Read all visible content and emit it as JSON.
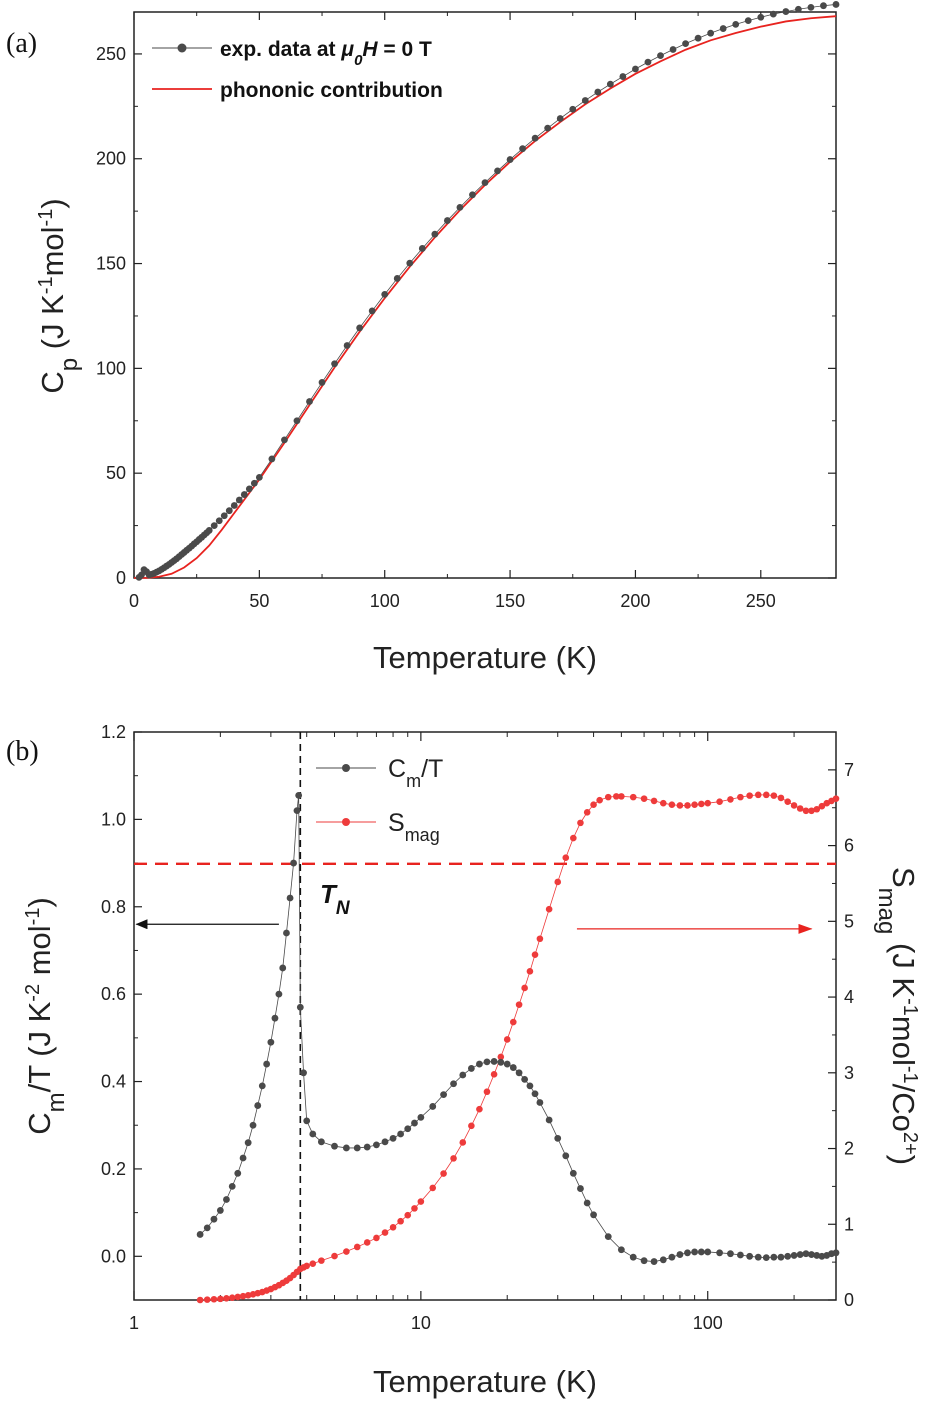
{
  "chart_data": [
    {
      "type": "scatter",
      "panel_label": "(a)",
      "xlabel": "Temperature (K)",
      "ylabel": "Cp (J K-1mol-1)",
      "xlim": [
        0,
        280
      ],
      "ylim": [
        0,
        270
      ],
      "x_ticks": [
        0,
        50,
        100,
        150,
        200,
        250
      ],
      "y_ticks": [
        0,
        50,
        100,
        150,
        200,
        250
      ],
      "legend": {
        "position": "top-left",
        "exp_label_prefix": "exp. data at ",
        "exp_label_mu": "μ",
        "exp_label_sub": "0",
        "exp_label_H": "H",
        "exp_label_suffix": " = 0 T",
        "phonon_label": "phononic contribution"
      },
      "series": [
        {
          "name": "exp. data at μ0H = 0 T",
          "color": "#4a4a4a",
          "style": "dots-line",
          "x": [
            2,
            3,
            4,
            5,
            6,
            7,
            8,
            9,
            10,
            11,
            12,
            13,
            14,
            15,
            16,
            17,
            18,
            19,
            20,
            21,
            22,
            23,
            24,
            25,
            26,
            27,
            28,
            29,
            30,
            32,
            34,
            36,
            38,
            40,
            42,
            44,
            46,
            48,
            50,
            55,
            60,
            65,
            70,
            75,
            80,
            85,
            90,
            95,
            100,
            105,
            110,
            115,
            120,
            125,
            130,
            135,
            140,
            145,
            150,
            155,
            160,
            165,
            170,
            175,
            180,
            185,
            190,
            195,
            200,
            205,
            210,
            215,
            220,
            225,
            230,
            235,
            240,
            245,
            250,
            255,
            260,
            265,
            270,
            275,
            280
          ],
          "y": [
            0.3,
            1.5,
            4.0,
            3.0,
            1.5,
            1.8,
            2.2,
            2.8,
            3.4,
            4.1,
            4.9,
            5.7,
            6.5,
            7.4,
            8.3,
            9.2,
            10.2,
            11.2,
            12.2,
            13.2,
            14.2,
            15.2,
            16.3,
            17.3,
            18.4,
            19.4,
            20.5,
            21.6,
            22.7,
            25.0,
            27.3,
            29.7,
            32.1,
            34.6,
            37.2,
            39.8,
            42.5,
            45.2,
            48.0,
            56.8,
            65.9,
            75.0,
            84.2,
            93.3,
            102.2,
            110.9,
            119.3,
            127.4,
            135.3,
            142.9,
            150.2,
            157.2,
            164.0,
            170.5,
            176.8,
            182.8,
            188.6,
            194.2,
            199.6,
            204.8,
            209.8,
            214.6,
            219.2,
            223.6,
            227.8,
            231.8,
            235.6,
            239.2,
            242.8,
            246.1,
            249.2,
            252.1,
            254.9,
            257.5,
            259.9,
            262.1,
            264.1,
            265.9,
            267.5,
            269.0,
            270.2,
            271.3,
            272.2,
            273.0,
            273.6
          ]
        },
        {
          "name": "phononic contribution",
          "color": "#e8231f",
          "style": "line",
          "x": [
            0,
            5,
            10,
            15,
            20,
            25,
            30,
            35,
            40,
            45,
            50,
            60,
            70,
            80,
            90,
            100,
            110,
            120,
            130,
            140,
            150,
            160,
            170,
            180,
            190,
            200,
            210,
            220,
            230,
            240,
            250,
            260,
            270,
            280
          ],
          "y": [
            0,
            0.1,
            0.6,
            2.0,
            5.0,
            9.5,
            15.5,
            23.0,
            31.0,
            39.0,
            47.0,
            64.5,
            82.5,
            100.5,
            117.5,
            133.5,
            148.5,
            162.5,
            175.5,
            187.5,
            198.5,
            208.5,
            217.5,
            226.0,
            233.5,
            240.5,
            246.5,
            252.0,
            256.5,
            260.0,
            263.0,
            265.5,
            267.0,
            268.0
          ]
        }
      ]
    },
    {
      "type": "scatter",
      "panel_label": "(b)",
      "xlabel": "Temperature (K)",
      "ylabel_left": "Cm/T (J K-2 mol-1)",
      "ylabel_right": "Smag (J K-1mol-1/Co2+)",
      "x_scale": "log",
      "xlim": [
        1,
        280
      ],
      "ylim_left": [
        -0.1,
        1.2
      ],
      "ylim_right": [
        0,
        7.5
      ],
      "x_ticks": [
        1,
        10,
        100
      ],
      "x_tick_labels": [
        "1",
        "10",
        "100"
      ],
      "y_ticks_left": [
        0.0,
        0.2,
        0.4,
        0.6,
        0.8,
        1.0,
        1.2
      ],
      "y_tick_labels_left": [
        "0.0",
        "0.2",
        "0.4",
        "0.6",
        "0.8",
        "1.0",
        "1.2"
      ],
      "y_ticks_right": [
        0,
        1,
        2,
        3,
        4,
        5,
        6,
        7
      ],
      "legend": {
        "position": "top-center",
        "cm_main": "C",
        "cm_sub": "m",
        "cm_tail": "/T",
        "smag_main": "S",
        "smag_sub": "mag"
      },
      "annotations": {
        "tn_main": "T",
        "tn_sub": "N",
        "tn_x": 3.8,
        "hline_right": 5.76,
        "arrow_left_y": 0.76,
        "arrow_left_from": 3.2,
        "arrow_left_to": 1.02,
        "arrow_right_y": 4.9,
        "arrow_right_from": 35,
        "arrow_right_to": 230
      },
      "series": [
        {
          "name": "Cm/T",
          "axis": "left",
          "color": "#4a4a4a",
          "x": [
            1.7,
            1.8,
            1.9,
            2.0,
            2.1,
            2.2,
            2.3,
            2.4,
            2.5,
            2.6,
            2.7,
            2.8,
            2.9,
            3.0,
            3.1,
            3.2,
            3.3,
            3.4,
            3.5,
            3.6,
            3.7,
            3.75,
            3.8,
            3.9,
            4.0,
            4.2,
            4.5,
            5.0,
            5.5,
            6.0,
            6.5,
            7.0,
            7.5,
            8.0,
            8.5,
            9.0,
            9.5,
            10.0,
            11.0,
            12.0,
            13.0,
            14.0,
            15.0,
            16.0,
            17.0,
            18.0,
            19.0,
            20.0,
            21.0,
            22.0,
            23.0,
            24.0,
            25.0,
            26.0,
            28.0,
            30.0,
            32.0,
            34.0,
            36.0,
            38.0,
            40.0,
            45.0,
            50.0,
            55.0,
            60.0,
            65.0,
            70.0,
            75.0,
            80.0,
            85.0,
            90.0,
            95.0,
            100.0,
            110.0,
            120.0,
            130.0,
            140.0,
            150.0,
            160.0,
            170.0,
            180.0,
            190.0,
            200.0,
            210.0,
            220.0,
            230.0,
            240.0,
            250.0,
            260.0,
            270.0,
            280.0
          ],
          "y": [
            0.05,
            0.065,
            0.085,
            0.105,
            0.13,
            0.16,
            0.19,
            0.225,
            0.26,
            0.3,
            0.345,
            0.39,
            0.44,
            0.49,
            0.545,
            0.6,
            0.66,
            0.74,
            0.82,
            0.9,
            1.02,
            1.055,
            0.57,
            0.42,
            0.31,
            0.28,
            0.262,
            0.252,
            0.248,
            0.248,
            0.25,
            0.255,
            0.262,
            0.27,
            0.28,
            0.292,
            0.305,
            0.318,
            0.343,
            0.37,
            0.395,
            0.415,
            0.43,
            0.44,
            0.445,
            0.446,
            0.444,
            0.44,
            0.432,
            0.42,
            0.405,
            0.39,
            0.372,
            0.352,
            0.312,
            0.27,
            0.23,
            0.19,
            0.155,
            0.122,
            0.095,
            0.045,
            0.015,
            -0.002,
            -0.01,
            -0.012,
            -0.008,
            -0.002,
            0.004,
            0.008,
            0.01,
            0.01,
            0.01,
            0.008,
            0.006,
            0.003,
            0.0,
            -0.002,
            -0.003,
            -0.002,
            -0.002,
            0.0,
            0.002,
            0.004,
            0.006,
            0.004,
            0.002,
            0.0,
            0.002,
            0.006,
            0.008
          ]
        },
        {
          "name": "Smag",
          "axis": "right",
          "color": "#ee3b3b",
          "x": [
            1.7,
            1.8,
            1.9,
            2.0,
            2.1,
            2.2,
            2.3,
            2.4,
            2.5,
            2.6,
            2.7,
            2.8,
            2.9,
            3.0,
            3.1,
            3.2,
            3.3,
            3.4,
            3.5,
            3.6,
            3.7,
            3.8,
            3.9,
            4.0,
            4.2,
            4.5,
            5.0,
            5.5,
            6.0,
            6.5,
            7.0,
            7.5,
            8.0,
            8.5,
            9.0,
            9.5,
            10.0,
            11.0,
            12.0,
            13.0,
            14.0,
            15.0,
            16.0,
            17.0,
            18.0,
            19.0,
            20.0,
            21.0,
            22.0,
            23.0,
            24.0,
            25.0,
            26.0,
            28.0,
            30.0,
            32.0,
            34.0,
            36.0,
            38.0,
            40.0,
            42.0,
            45.0,
            48.0,
            50.0,
            55.0,
            60.0,
            65.0,
            70.0,
            75.0,
            80.0,
            85.0,
            90.0,
            95.0,
            100.0,
            110.0,
            120.0,
            130.0,
            140.0,
            150.0,
            160.0,
            170.0,
            180.0,
            190.0,
            200.0,
            210.0,
            220.0,
            230.0,
            240.0,
            250.0,
            260.0,
            270.0,
            280.0
          ],
          "y": [
            0.0,
            0.005,
            0.01,
            0.015,
            0.022,
            0.03,
            0.04,
            0.05,
            0.062,
            0.075,
            0.09,
            0.105,
            0.125,
            0.145,
            0.17,
            0.195,
            0.225,
            0.255,
            0.29,
            0.33,
            0.37,
            0.41,
            0.43,
            0.45,
            0.48,
            0.52,
            0.58,
            0.64,
            0.7,
            0.76,
            0.82,
            0.89,
            0.96,
            1.04,
            1.12,
            1.21,
            1.3,
            1.48,
            1.67,
            1.87,
            2.08,
            2.3,
            2.52,
            2.75,
            2.98,
            3.21,
            3.44,
            3.67,
            3.9,
            4.12,
            4.34,
            4.56,
            4.77,
            5.16,
            5.52,
            5.84,
            6.1,
            6.3,
            6.44,
            6.54,
            6.6,
            6.64,
            6.65,
            6.65,
            6.64,
            6.62,
            6.59,
            6.56,
            6.54,
            6.53,
            6.53,
            6.54,
            6.55,
            6.56,
            6.58,
            6.61,
            6.64,
            6.66,
            6.67,
            6.67,
            6.66,
            6.63,
            6.58,
            6.53,
            6.49,
            6.46,
            6.46,
            6.48,
            6.52,
            6.56,
            6.59,
            6.62
          ]
        }
      ]
    }
  ]
}
